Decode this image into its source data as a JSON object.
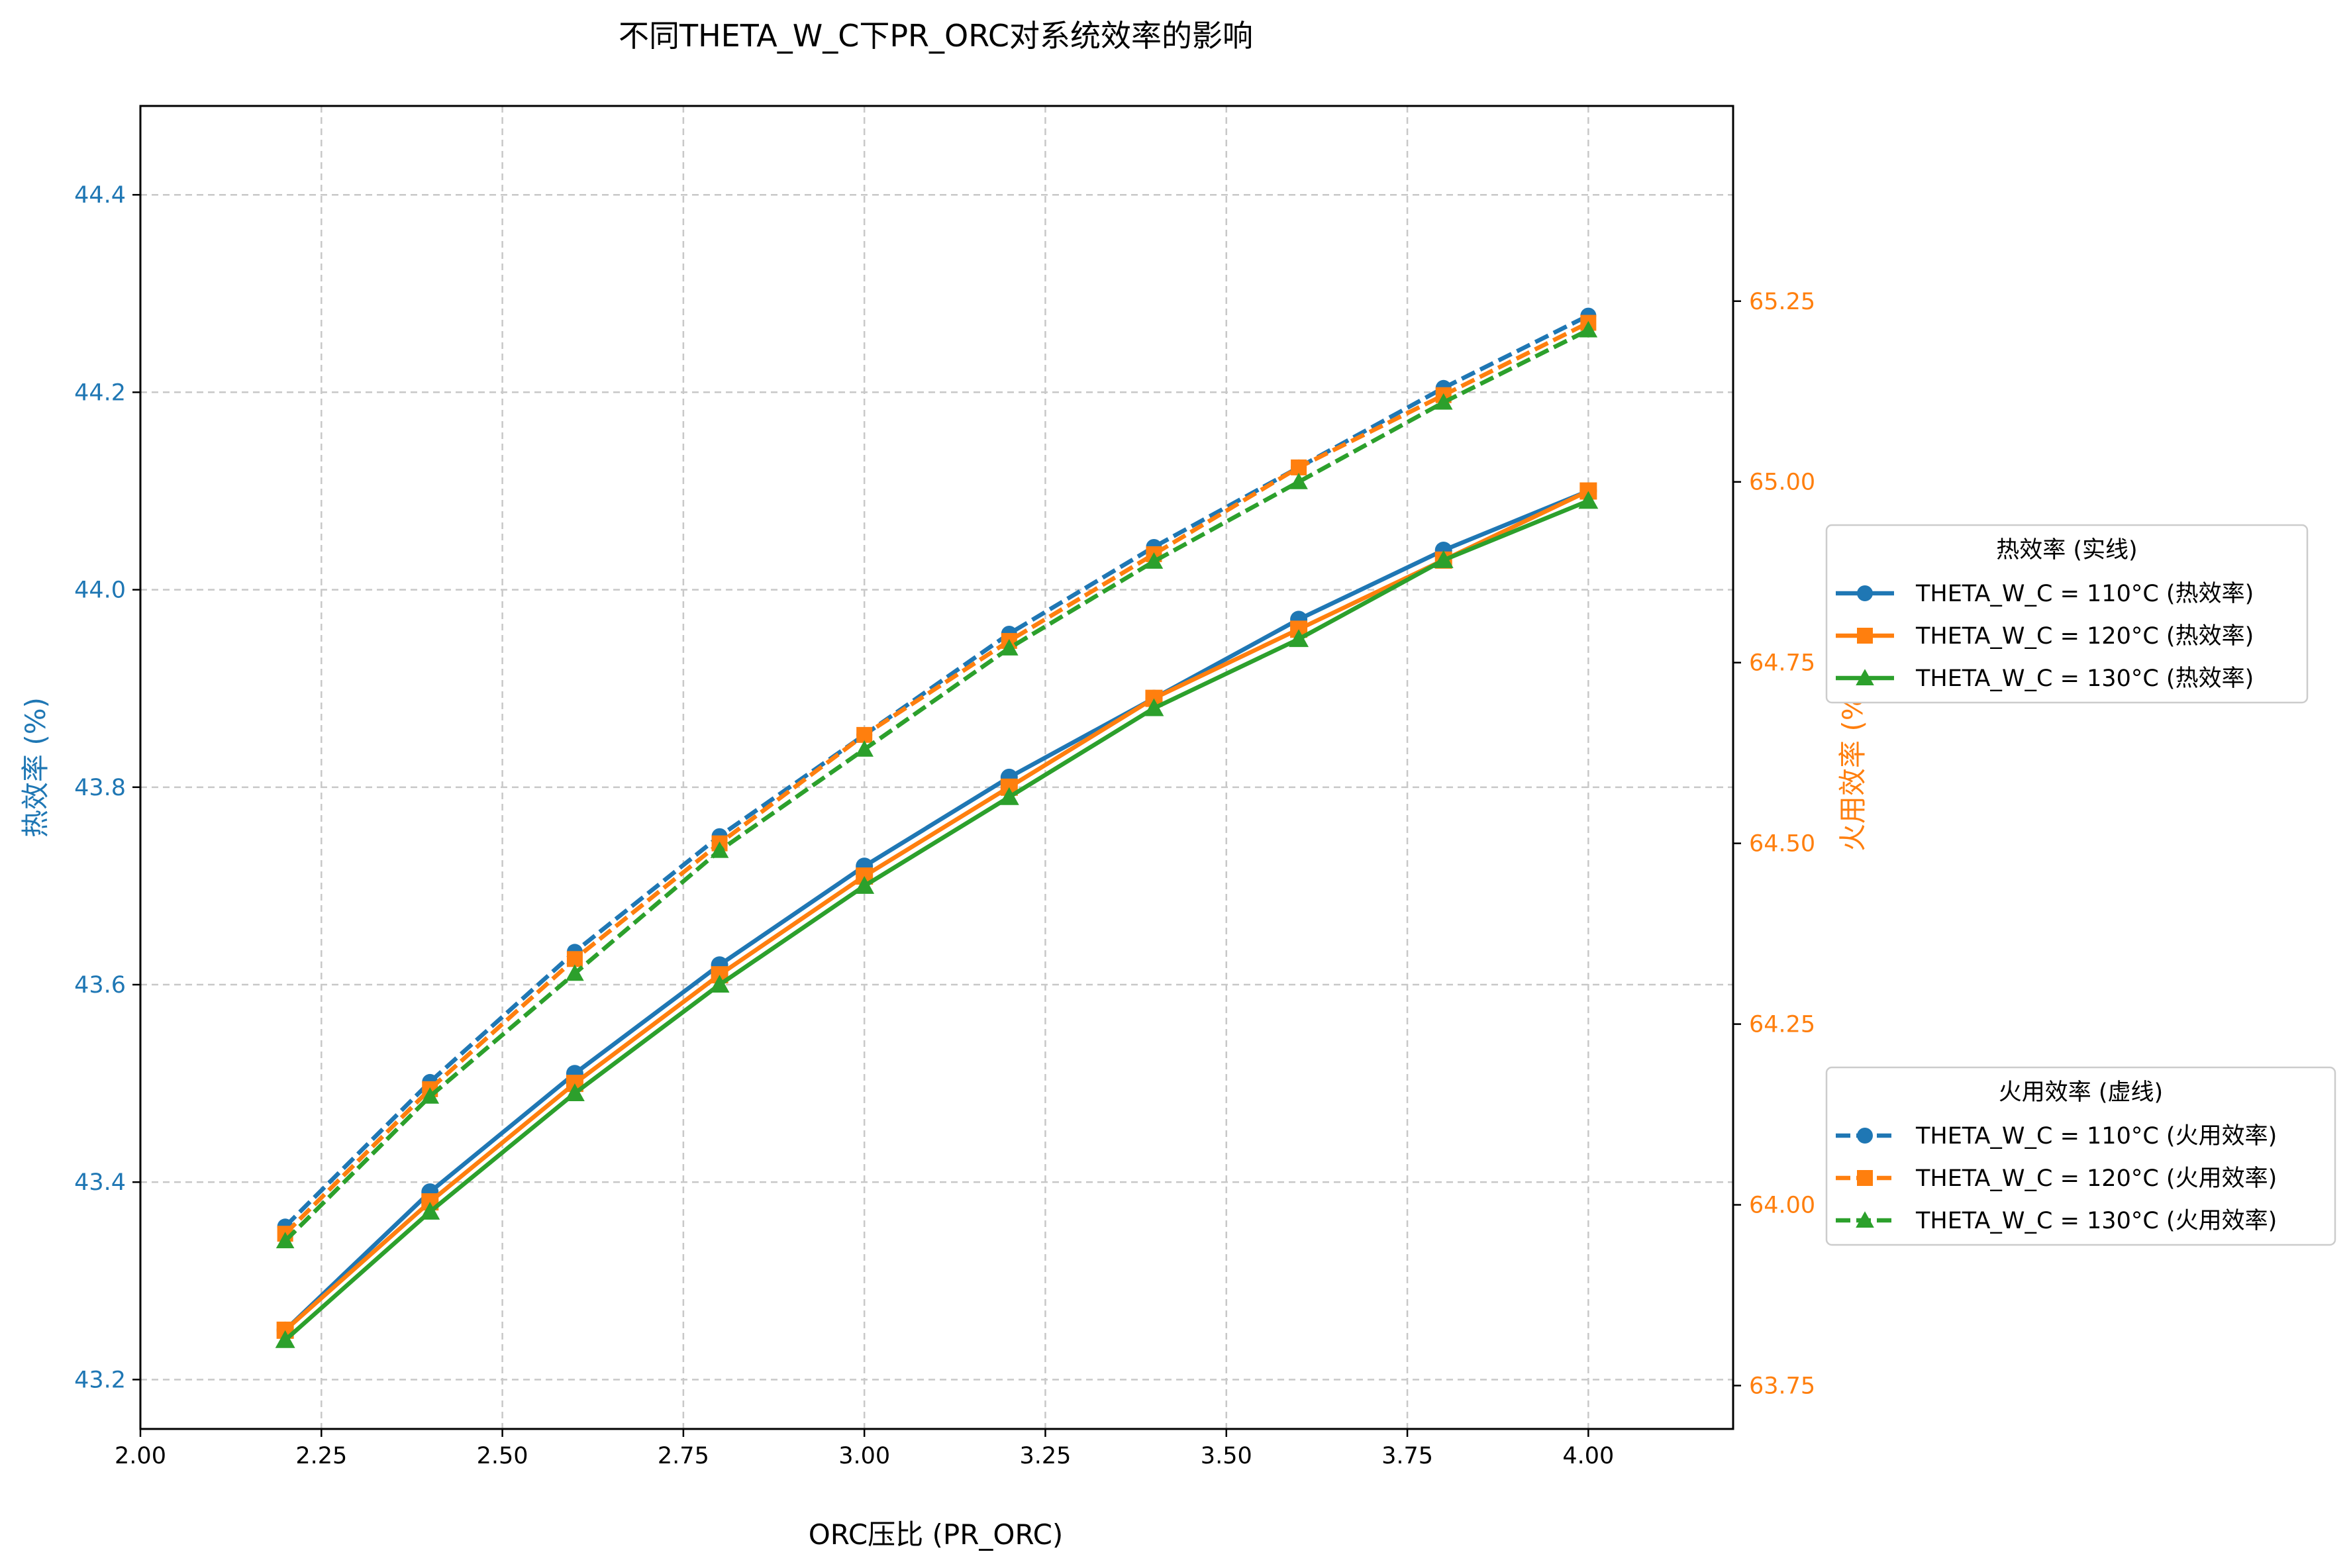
{
  "chart_data": {
    "type": "line",
    "title": "不同THETA_W_C下PR_ORC对系统效率的影响",
    "xlabel": "ORC压比 (PR_ORC)",
    "ylabel_left": "热效率 (%)",
    "ylabel_right": "火用效率 (%)",
    "xlim": [
      2.0,
      4.2
    ],
    "ylim_left": [
      43.15,
      44.49
    ],
    "ylim_right": [
      63.69,
      65.52
    ],
    "x_ticks": [
      "2.00",
      "2.25",
      "2.50",
      "2.75",
      "3.00",
      "3.25",
      "3.50",
      "3.75",
      "4.00"
    ],
    "y_ticks_left": [
      "43.2",
      "43.4",
      "43.6",
      "43.8",
      "44.0",
      "44.2",
      "44.4"
    ],
    "y_ticks_right": [
      "63.75",
      "64.00",
      "64.25",
      "64.50",
      "64.75",
      "65.00",
      "65.25"
    ],
    "grid": true,
    "x": [
      2.2,
      2.4,
      2.6,
      2.8,
      3.0,
      3.2,
      3.4,
      3.6,
      3.8,
      4.0
    ],
    "thermal_series": [
      {
        "name": "THETA_W_C = 110°C (热效率)",
        "color": "#1f77b4",
        "marker": "circle",
        "values": [
          43.25,
          43.39,
          43.51,
          43.62,
          43.72,
          43.81,
          43.89,
          43.97,
          44.04,
          44.1
        ]
      },
      {
        "name": "THETA_W_C = 120°C (热效率)",
        "color": "#ff7f0e",
        "marker": "square",
        "values": [
          43.25,
          43.38,
          43.5,
          43.61,
          43.71,
          43.8,
          43.89,
          43.96,
          44.03,
          44.1
        ]
      },
      {
        "name": "THETA_W_C = 130°C (热效率)",
        "color": "#2ca02c",
        "marker": "triangle",
        "values": [
          43.24,
          43.37,
          43.49,
          43.6,
          43.7,
          43.79,
          43.88,
          43.95,
          44.03,
          44.09
        ]
      }
    ],
    "exergy_series": [
      {
        "name": "THETA_W_C = 110°C (火用效率)",
        "color": "#1f77b4",
        "marker": "circle",
        "values": [
          63.97,
          64.17,
          64.35,
          64.51,
          64.65,
          64.79,
          64.91,
          65.02,
          65.13,
          65.23
        ]
      },
      {
        "name": "THETA_W_C = 120°C (火用效率)",
        "color": "#ff7f0e",
        "marker": "square",
        "values": [
          63.96,
          64.16,
          64.34,
          64.5,
          64.65,
          64.78,
          64.9,
          65.02,
          65.12,
          65.22
        ]
      },
      {
        "name": "THETA_W_C = 130°C (火用效率)",
        "color": "#2ca02c",
        "marker": "triangle",
        "values": [
          63.95,
          64.15,
          64.32,
          64.49,
          64.63,
          64.77,
          64.89,
          65.0,
          65.11,
          65.21
        ]
      }
    ],
    "legend_thermal": {
      "title": "热效率 (实线)",
      "placement": "center-right, outside axes"
    },
    "legend_exergy": {
      "title": "火用效率 (虚线)",
      "placement": "lower-right, outside axes"
    },
    "colors": {
      "left_axis": "#1f77b4",
      "right_axis": "#ff7f0e",
      "grid": "#c8c8c8"
    }
  }
}
